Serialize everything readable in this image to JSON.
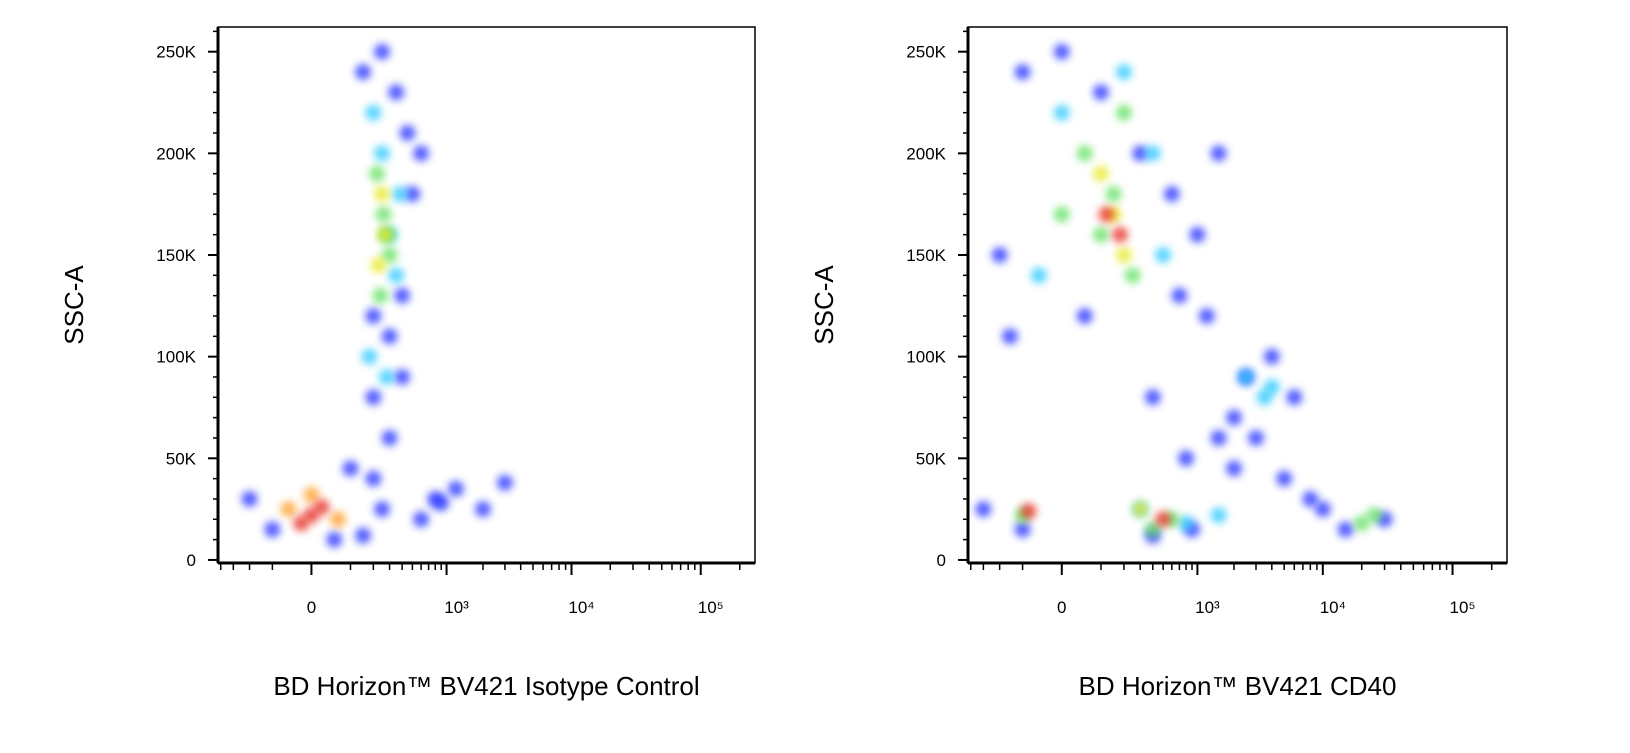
{
  "chart_data": [
    {
      "type": "scatter",
      "x_label": "BD Horizon™ BV421 Isotype Control",
      "y_label": "SSC-A",
      "xscale": "biexponential",
      "xlim": [
        -425,
        262144
      ],
      "ylim": [
        -1500,
        262144
      ],
      "xticks": [
        0,
        {
          "value": 1000,
          "label": "10³"
        },
        {
          "value": 10000,
          "label": "10⁴"
        },
        {
          "value": 100000,
          "label": "10⁵"
        }
      ],
      "xminor_ticks": [
        -400,
        -300,
        -200,
        -100,
        100,
        200,
        300,
        400,
        500,
        600,
        700,
        800,
        900,
        2000,
        3000,
        4000,
        5000,
        6000,
        7000,
        8000,
        9000,
        20000,
        30000,
        40000,
        50000,
        60000,
        70000,
        80000,
        90000,
        200000
      ],
      "yticks": [
        0,
        {
          "value": 50000,
          "label": "50K"
        },
        {
          "value": 100000,
          "label": "100K"
        },
        {
          "value": 150000,
          "label": "150K"
        },
        {
          "value": 200000,
          "label": "200K"
        },
        {
          "value": 250000,
          "label": "250K"
        }
      ],
      "yminor_ticks": [
        10000,
        20000,
        30000,
        40000,
        60000,
        70000,
        80000,
        90000,
        110000,
        120000,
        130000,
        140000,
        160000,
        170000,
        180000,
        190000,
        210000,
        220000,
        230000,
        240000,
        260000
      ],
      "point_groups": [
        {
          "color": "#1a2cff",
          "x": [
            150,
            250,
            350,
            450,
            200,
            300,
            400,
            500,
            600,
            200,
            300,
            400,
            100,
            200,
            800,
            1200,
            2000,
            600,
            900,
            3000,
            -100,
            -200,
            50,
            150,
            250
          ],
          "y": [
            240000,
            250000,
            230000,
            210000,
            120000,
            110000,
            130000,
            180000,
            200000,
            80000,
            60000,
            90000,
            45000,
            40000,
            30000,
            35000,
            25000,
            20000,
            28000,
            38000,
            15000,
            30000,
            10000,
            12000,
            25000
          ]
        },
        {
          "color": "#28c8ff",
          "x": [
            200,
            250,
            300,
            350,
            180,
            280,
            380
          ],
          "y": [
            220000,
            200000,
            160000,
            140000,
            100000,
            90000,
            180000
          ]
        },
        {
          "color": "#5de05d",
          "x": [
            220,
            260,
            300,
            240,
            280
          ],
          "y": [
            190000,
            170000,
            150000,
            130000,
            160000
          ]
        },
        {
          "color": "#e8e820",
          "x": [
            250,
            270,
            230
          ],
          "y": [
            180000,
            160000,
            145000
          ]
        },
        {
          "color": "#ff9a1a",
          "x": [
            -50,
            60,
            0
          ],
          "y": [
            25000,
            20000,
            32000
          ]
        },
        {
          "color": "#e8281e",
          "x": [
            0,
            -20,
            20
          ],
          "y": [
            22000,
            18000,
            26000
          ]
        }
      ]
    },
    {
      "type": "scatter",
      "x_label": "BD Horizon™ BV421 CD40",
      "y_label": "SSC-A",
      "xscale": "biexponential",
      "xlim": [
        -425,
        262144
      ],
      "ylim": [
        -1500,
        262144
      ],
      "xticks": [
        0,
        {
          "value": 1000,
          "label": "10³"
        },
        {
          "value": 10000,
          "label": "10⁴"
        },
        {
          "value": 100000,
          "label": "10⁵"
        }
      ],
      "xminor_ticks": [
        -400,
        -300,
        -200,
        -100,
        100,
        200,
        300,
        400,
        500,
        600,
        700,
        800,
        900,
        2000,
        3000,
        4000,
        5000,
        6000,
        7000,
        8000,
        9000,
        20000,
        30000,
        40000,
        50000,
        60000,
        70000,
        80000,
        90000,
        200000
      ],
      "yticks": [
        0,
        {
          "value": 50000,
          "label": "50K"
        },
        {
          "value": 100000,
          "label": "100K"
        },
        {
          "value": 150000,
          "label": "150K"
        },
        {
          "value": 200000,
          "label": "200K"
        },
        {
          "value": 250000,
          "label": "250K"
        }
      ],
      "yminor_ticks": [
        10000,
        20000,
        30000,
        40000,
        60000,
        70000,
        80000,
        90000,
        110000,
        120000,
        130000,
        140000,
        160000,
        170000,
        180000,
        190000,
        210000,
        220000,
        230000,
        240000,
        260000
      ],
      "point_groups": [
        {
          "color": "#1a2cff",
          "x": [
            -200,
            -100,
            0,
            100,
            300,
            600,
            1000,
            1500,
            -150,
            50,
            700,
            1200,
            2500,
            4000,
            6000,
            3000,
            5000,
            8000,
            2000,
            -300,
            -100,
            400,
            900,
            15000,
            30000,
            10000,
            1500,
            2000,
            400,
            800
          ],
          "y": [
            150000,
            240000,
            250000,
            230000,
            200000,
            180000,
            160000,
            200000,
            110000,
            120000,
            130000,
            120000,
            90000,
            100000,
            80000,
            60000,
            40000,
            30000,
            70000,
            25000,
            15000,
            12000,
            15000,
            15000,
            20000,
            25000,
            60000,
            45000,
            80000,
            50000
          ]
        },
        {
          "color": "#28c8ff",
          "x": [
            0,
            200,
            400,
            -50,
            500,
            2500,
            3500,
            4000,
            300,
            800,
            1500
          ],
          "y": [
            220000,
            240000,
            200000,
            140000,
            150000,
            90000,
            80000,
            85000,
            25000,
            18000,
            22000
          ]
        },
        {
          "color": "#5de05d",
          "x": [
            50,
            150,
            250,
            100,
            200,
            0,
            600,
            20000,
            25000,
            -100,
            400
          ],
          "y": [
            200000,
            180000,
            140000,
            160000,
            220000,
            170000,
            20000,
            18000,
            22000,
            22000,
            15000
          ]
        },
        {
          "color": "#e8e820",
          "x": [
            100,
            200,
            150,
            300
          ],
          "y": [
            190000,
            150000,
            170000,
            25000
          ]
        },
        {
          "color": "#e8281e",
          "x": [
            120,
            180,
            -80,
            500
          ],
          "y": [
            170000,
            160000,
            24000,
            20000
          ]
        }
      ]
    }
  ]
}
